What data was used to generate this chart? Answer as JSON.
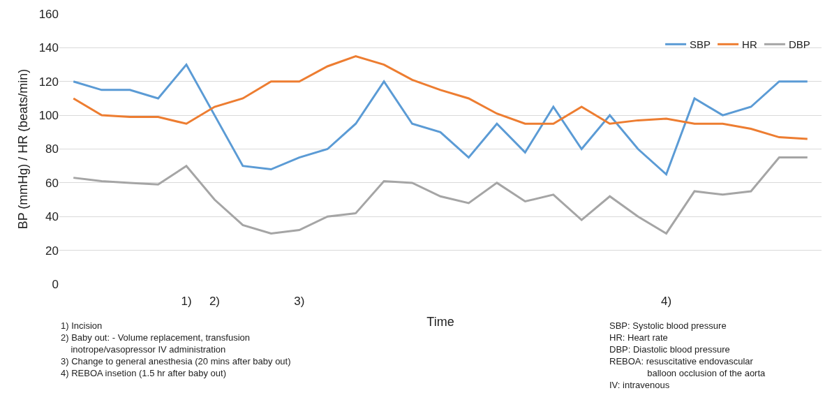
{
  "chart_data": {
    "type": "line",
    "ylabel": "BP (mmHg) / HR (beats/min)",
    "xlabel": "Time",
    "categories": [
      null,
      null,
      null,
      null,
      "1)",
      "2)",
      null,
      null,
      "3)",
      null,
      null,
      null,
      null,
      null,
      null,
      null,
      null,
      null,
      null,
      null,
      null,
      "4)",
      null,
      null,
      null,
      null,
      null
    ],
    "ylim": [
      0,
      160
    ],
    "yticks": [
      0,
      20,
      40,
      60,
      80,
      100,
      120,
      140,
      160
    ],
    "grid": "y",
    "legend": "top right",
    "marker": "none",
    "line_style": "solid",
    "series": [
      {
        "name": "SBP",
        "color": "#5b9bd5",
        "values": [
          120,
          115,
          115,
          110,
          130,
          100,
          70,
          68,
          75,
          80,
          95,
          120,
          95,
          90,
          75,
          95,
          78,
          105,
          80,
          100,
          80,
          65,
          110,
          100,
          105,
          120,
          120
        ]
      },
      {
        "name": "HR",
        "color": "#ed7d31",
        "values": [
          110,
          100,
          99,
          99,
          95,
          105,
          110,
          120,
          120,
          129,
          135,
          130,
          121,
          115,
          110,
          101,
          95,
          95,
          105,
          95,
          97,
          98,
          95,
          95,
          92,
          87,
          86
        ]
      },
      {
        "name": "DBP",
        "color": "#a5a5a5",
        "values": [
          63,
          61,
          60,
          59,
          70,
          50,
          35,
          30,
          32,
          40,
          42,
          61,
          60,
          52,
          48,
          60,
          49,
          53,
          38,
          52,
          40,
          30,
          55,
          53,
          55,
          75,
          75
        ]
      }
    ],
    "annotations": [
      "1) Incision\n2) Baby out: - Volume replacement, transfusion\n    inotrope/vasopressor IV administration\n3) Change to general anesthesia (20 mins after baby out)\n4) REBOA insetion (1.5 hr after baby out)",
      "SBP: Systolic blood pressure\nHR: Heart rate\nDBP: Diastolic blood pressure\nREBOA: resuscitative endovascular\n               balloon occlusion of the aorta\nIV: intravenous"
    ]
  }
}
